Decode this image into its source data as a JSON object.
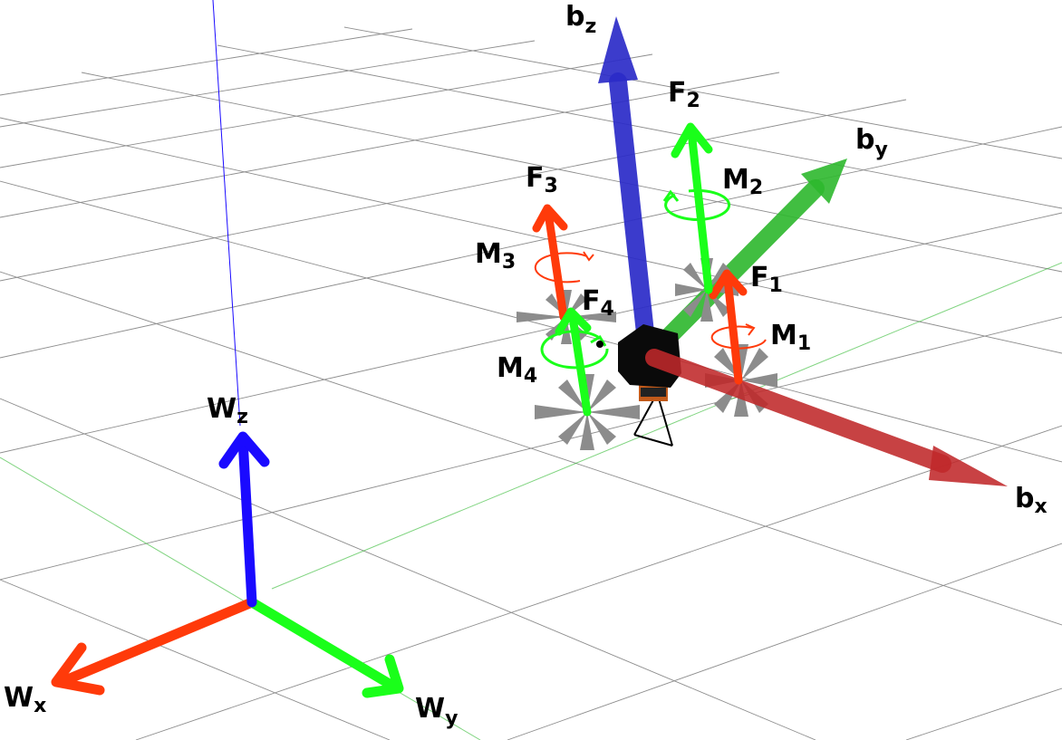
{
  "world_frame": {
    "x_label": "W",
    "x_sub": "x",
    "y_label": "W",
    "y_sub": "y",
    "z_label": "W",
    "z_sub": "z"
  },
  "body_frame": {
    "x_label": "b",
    "x_sub": "x",
    "y_label": "b",
    "y_sub": "y",
    "z_label": "b",
    "z_sub": "z"
  },
  "forces": [
    {
      "label": "F",
      "sub": "1"
    },
    {
      "label": "F",
      "sub": "2"
    },
    {
      "label": "F",
      "sub": "3"
    },
    {
      "label": "F",
      "sub": "4"
    }
  ],
  "moments": [
    {
      "label": "M",
      "sub": "1"
    },
    {
      "label": "M",
      "sub": "2"
    },
    {
      "label": "M",
      "sub": "3"
    },
    {
      "label": "M",
      "sub": "4"
    }
  ],
  "colors": {
    "x_axis": "#ff3a0a",
    "y_axis": "#1aff1a",
    "z_axis": "#1a0aff",
    "body_x": "#c0282a",
    "body_y": "#2db82d",
    "body_z": "#2b2bc8",
    "grid": "#7a7a7a",
    "propeller": "#8c8c8c"
  }
}
